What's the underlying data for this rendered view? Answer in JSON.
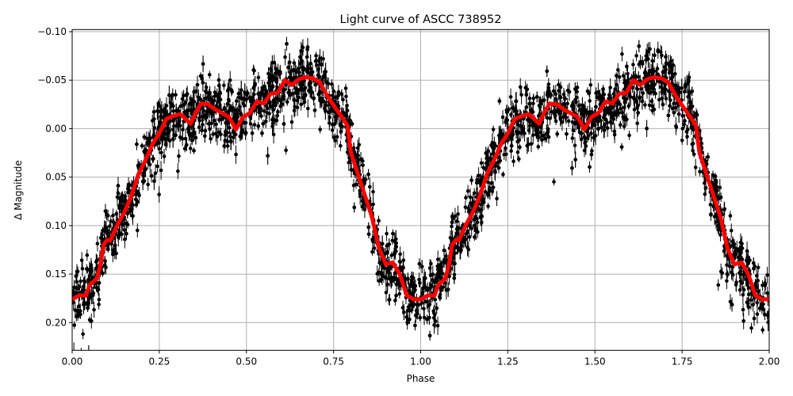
{
  "chart_data": {
    "type": "scatter",
    "title": "Light curve of ASCC 738952",
    "xlabel": "Phase",
    "ylabel": "Δ Magnitude",
    "xlim": [
      0.0,
      2.0
    ],
    "ylim": [
      0.2286,
      -0.1022
    ],
    "y_inverted": true,
    "grid": true,
    "x_ticks": [
      0.0,
      0.25,
      0.5,
      0.75,
      1.0,
      1.25,
      1.5,
      1.75,
      2.0
    ],
    "x_tick_labels": [
      "0.00",
      "0.25",
      "0.50",
      "0.75",
      "1.00",
      "1.25",
      "1.50",
      "1.75",
      "2.00"
    ],
    "y_ticks": [
      -0.1,
      -0.05,
      0.0,
      0.05,
      0.1,
      0.15,
      0.2
    ],
    "y_tick_labels": [
      "−0.10",
      "−0.05",
      "0.00",
      "0.05",
      "0.10",
      "0.15",
      "0.20"
    ],
    "scatter": {
      "color": "#000000",
      "marker": "circle",
      "error_bars": true,
      "approx_scatter_sigma": 0.02
    },
    "fit_line": {
      "color": "#ff0000",
      "phase": [
        0.0,
        0.02,
        0.04,
        0.05,
        0.07,
        0.08,
        0.09,
        0.1,
        0.11,
        0.13,
        0.15,
        0.17,
        0.19,
        0.21,
        0.23,
        0.25,
        0.27,
        0.29,
        0.31,
        0.32,
        0.34,
        0.355,
        0.37,
        0.39,
        0.41,
        0.43,
        0.45,
        0.47,
        0.49,
        0.51,
        0.53,
        0.55,
        0.57,
        0.59,
        0.61,
        0.63,
        0.65,
        0.67,
        0.69,
        0.71,
        0.73,
        0.75,
        0.77,
        0.79,
        0.8,
        0.82,
        0.84,
        0.86,
        0.88,
        0.9,
        0.92,
        0.94,
        0.96,
        0.98,
        1.0,
        1.02,
        1.04,
        1.05,
        1.07,
        1.08,
        1.09,
        1.1,
        1.11,
        1.13,
        1.15,
        1.17,
        1.19,
        1.21,
        1.23,
        1.25,
        1.27,
        1.29,
        1.31,
        1.32,
        1.34,
        1.355,
        1.37,
        1.39,
        1.41,
        1.43,
        1.45,
        1.47,
        1.49,
        1.51,
        1.53,
        1.55,
        1.57,
        1.59,
        1.61,
        1.63,
        1.65,
        1.67,
        1.69,
        1.71,
        1.73,
        1.75,
        1.77,
        1.79,
        1.8,
        1.82,
        1.84,
        1.86,
        1.88,
        1.9,
        1.92,
        1.94,
        1.96,
        1.98,
        2.0
      ],
      "magnitude": [
        0.176,
        0.172,
        0.172,
        0.161,
        0.155,
        0.142,
        0.12,
        0.115,
        0.115,
        0.099,
        0.086,
        0.069,
        0.047,
        0.033,
        0.016,
        0.005,
        -0.01,
        -0.013,
        -0.015,
        -0.012,
        -0.005,
        -0.017,
        -0.026,
        -0.025,
        -0.02,
        -0.016,
        -0.012,
        0.001,
        -0.012,
        -0.016,
        -0.028,
        -0.026,
        -0.036,
        -0.037,
        -0.05,
        -0.045,
        -0.051,
        -0.053,
        -0.052,
        -0.048,
        -0.035,
        -0.024,
        -0.014,
        -0.003,
        0.025,
        0.047,
        0.069,
        0.091,
        0.123,
        0.14,
        0.138,
        0.15,
        0.172,
        0.176,
        0.176,
        0.172,
        0.172,
        0.161,
        0.155,
        0.142,
        0.12,
        0.115,
        0.115,
        0.099,
        0.086,
        0.069,
        0.047,
        0.033,
        0.016,
        0.005,
        -0.01,
        -0.013,
        -0.015,
        -0.012,
        -0.005,
        -0.017,
        -0.026,
        -0.025,
        -0.02,
        -0.016,
        -0.012,
        0.001,
        -0.012,
        -0.016,
        -0.028,
        -0.026,
        -0.036,
        -0.037,
        -0.05,
        -0.045,
        -0.051,
        -0.053,
        -0.052,
        -0.048,
        -0.035,
        -0.024,
        -0.014,
        -0.003,
        0.025,
        0.047,
        0.069,
        0.091,
        0.123,
        0.14,
        0.138,
        0.15,
        0.172,
        0.176,
        0.176
      ]
    }
  }
}
